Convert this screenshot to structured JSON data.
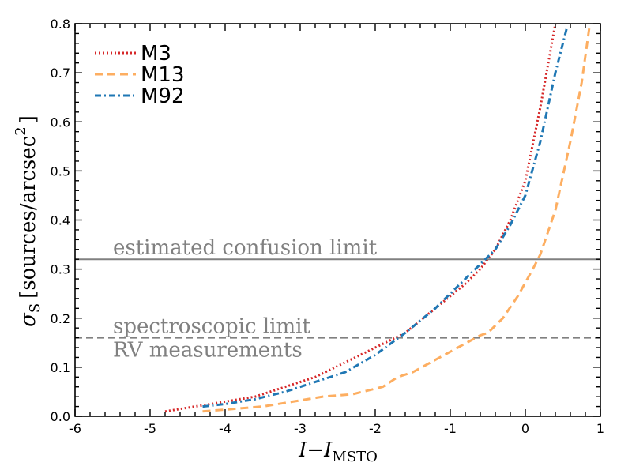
{
  "chart_data": {
    "type": "line",
    "xlabel": "I−I",
    "xlabel_sub": "MSTO",
    "ylabel_sigma": "σ",
    "ylabel_sub": "S",
    "ylabel_units": "[sources/arcsec",
    "ylabel_sup": "2",
    "ylabel_close": "]",
    "xlim": [
      -6,
      1
    ],
    "ylim": [
      0,
      0.8
    ],
    "xticks": [
      -6,
      -5,
      -4,
      -3,
      -2,
      -1,
      0,
      1
    ],
    "yticks": [
      0.0,
      0.1,
      0.2,
      0.3,
      0.4,
      0.5,
      0.6,
      0.7,
      0.8
    ],
    "xtick_labels": [
      "-6",
      "-5",
      "-4",
      "-3",
      "-2",
      "-1",
      "0",
      "1"
    ],
    "ytick_labels": [
      "0.0",
      "0.1",
      "0.2",
      "0.3",
      "0.4",
      "0.5",
      "0.6",
      "0.7",
      "0.8"
    ],
    "legend_position": "top-left",
    "series": [
      {
        "name": "M3",
        "color": "#d62728",
        "style": "dotted",
        "x": [
          -4.8,
          -4.4,
          -4.0,
          -3.6,
          -3.2,
          -2.8,
          -2.4,
          -2.0,
          -1.6,
          -1.2,
          -0.8,
          -0.6,
          -0.4,
          -0.2,
          0.0,
          0.2,
          0.4
        ],
        "y": [
          0.01,
          0.02,
          0.03,
          0.04,
          0.06,
          0.08,
          0.11,
          0.14,
          0.17,
          0.22,
          0.27,
          0.3,
          0.34,
          0.4,
          0.48,
          0.63,
          0.8
        ]
      },
      {
        "name": "M13",
        "color": "#fdae61",
        "style": "dashed",
        "x": [
          -4.3,
          -3.9,
          -3.5,
          -3.1,
          -2.7,
          -2.3,
          -1.9,
          -1.7,
          -1.5,
          -1.2,
          -0.9,
          -0.6,
          -0.5,
          -0.3,
          -0.1,
          0.1,
          0.2,
          0.4,
          0.6,
          0.75,
          0.85
        ],
        "y": [
          0.01,
          0.015,
          0.02,
          0.03,
          0.04,
          0.045,
          0.06,
          0.08,
          0.09,
          0.115,
          0.14,
          0.165,
          0.17,
          0.2,
          0.245,
          0.3,
          0.33,
          0.42,
          0.56,
          0.68,
          0.79
        ]
      },
      {
        "name": "M92",
        "color": "#1f77b4",
        "style": "dashdot",
        "x": [
          -4.3,
          -4.0,
          -3.6,
          -3.2,
          -2.8,
          -2.4,
          -2.0,
          -1.6,
          -1.2,
          -0.8,
          -0.6,
          -0.4,
          -0.2,
          0.0,
          0.2,
          0.4,
          0.55
        ],
        "y": [
          0.02,
          0.025,
          0.035,
          0.05,
          0.07,
          0.09,
          0.125,
          0.17,
          0.22,
          0.28,
          0.31,
          0.34,
          0.39,
          0.45,
          0.56,
          0.7,
          0.79
        ]
      }
    ],
    "hlines": [
      {
        "y": 0.32,
        "style": "solid",
        "color": "#808080",
        "label": "estimated confusion limit"
      },
      {
        "y": 0.16,
        "style": "dashed",
        "color": "#808080",
        "label": "spectroscopic limit",
        "label2": "RV measurements"
      }
    ]
  }
}
